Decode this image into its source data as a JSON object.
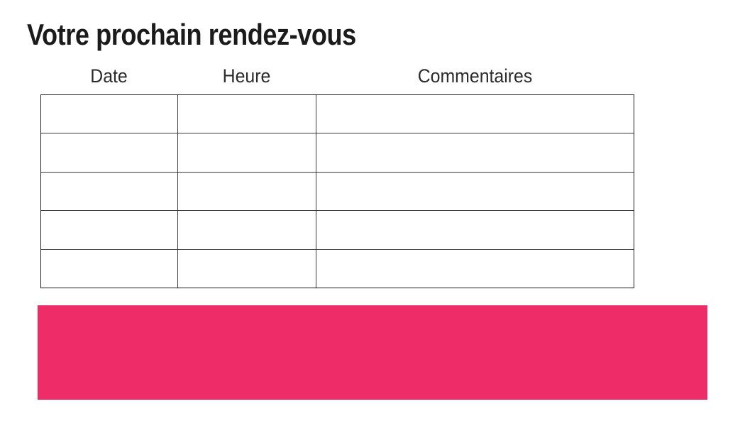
{
  "page": {
    "title": "Votre prochain rendez-vous",
    "background_color": "#ffffff",
    "accent_color": "#ee2c68"
  },
  "table": {
    "columns": [
      {
        "label": "Date"
      },
      {
        "label": "Heure"
      },
      {
        "label": "Commentaires"
      }
    ],
    "rows": [
      [
        "",
        "",
        ""
      ],
      [
        "",
        "",
        ""
      ],
      [
        "",
        "",
        ""
      ],
      [
        "",
        "",
        ""
      ],
      [
        "",
        "",
        ""
      ]
    ]
  },
  "highlight_band": {
    "color": "#ee2c68"
  }
}
